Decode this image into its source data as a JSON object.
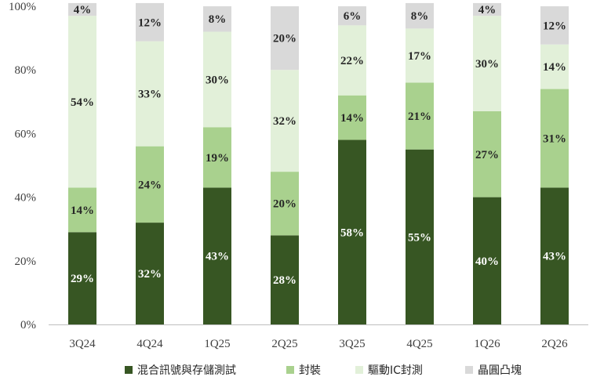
{
  "chart_data": {
    "type": "bar",
    "stacked": true,
    "percent_stacked": true,
    "categories": [
      "3Q24",
      "4Q24",
      "1Q25",
      "2Q25",
      "3Q25",
      "4Q25",
      "1Q26",
      "2Q26"
    ],
    "series": [
      {
        "name": "混合訊號與存儲測試",
        "color": "#375623",
        "label_color": "#ffffff",
        "values": [
          29,
          32,
          43,
          28,
          58,
          55,
          40,
          43
        ]
      },
      {
        "name": "封裝",
        "color": "#a9d18e",
        "label_color": "#262626",
        "values": [
          14,
          24,
          19,
          20,
          14,
          21,
          27,
          31
        ]
      },
      {
        "name": "驅動IC封測",
        "color": "#e2f0d9",
        "label_color": "#262626",
        "values": [
          54,
          33,
          30,
          32,
          22,
          17,
          30,
          14
        ]
      },
      {
        "name": "晶圓凸塊",
        "color": "#d9d9d9",
        "label_color": "#262626",
        "values": [
          4,
          12,
          8,
          20,
          6,
          8,
          4,
          12
        ]
      }
    ],
    "ylim": [
      0,
      100
    ],
    "yticks": [
      "0%",
      "20%",
      "40%",
      "60%",
      "80%",
      "100%"
    ],
    "value_suffix": "%",
    "legend_position": "bottom",
    "grid": false
  }
}
